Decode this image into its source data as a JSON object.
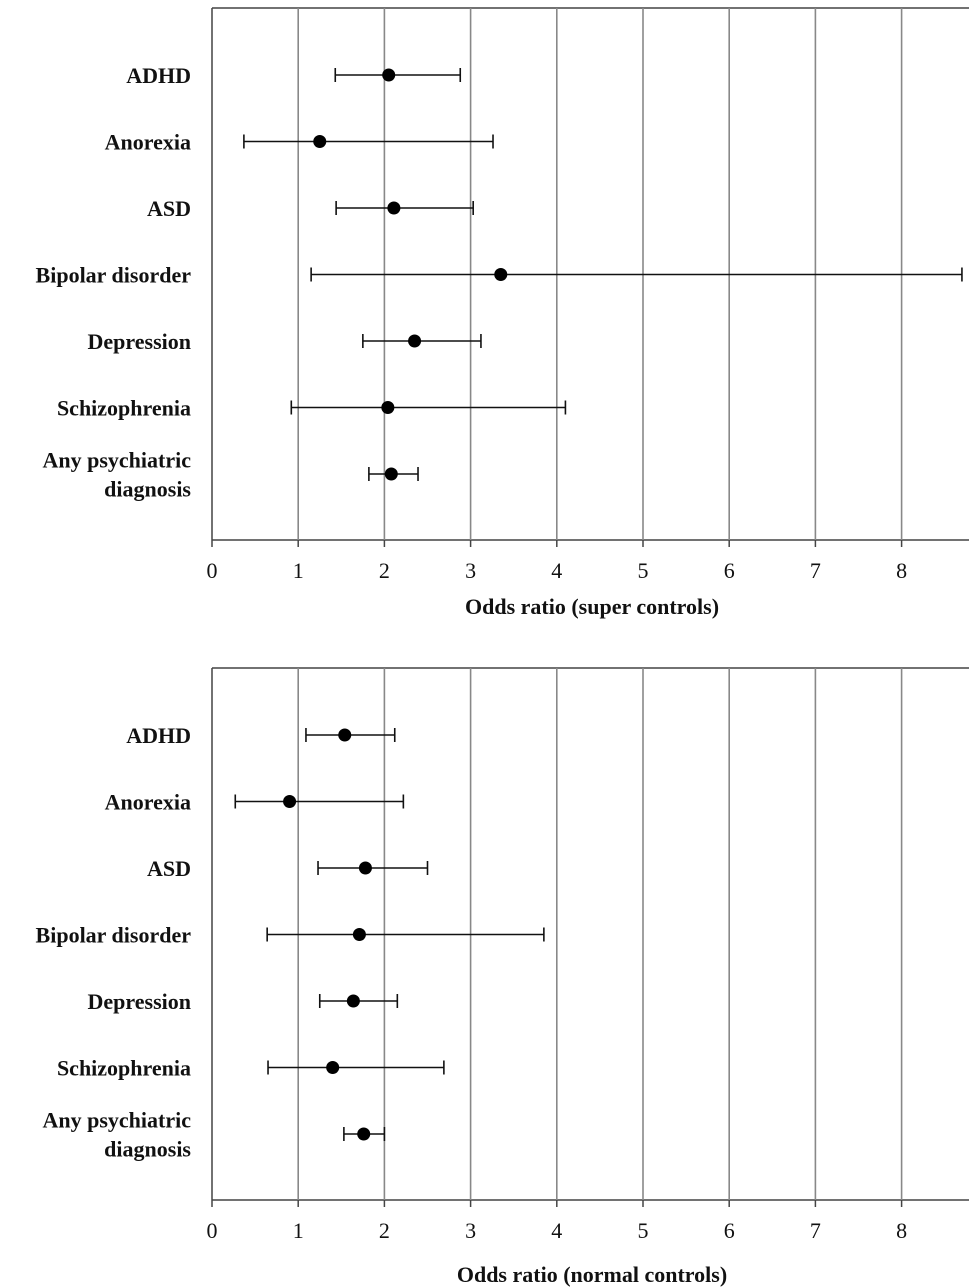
{
  "chart_data": [
    {
      "type": "scatter",
      "title": "",
      "xlabel": "Odds ratio (super controls)",
      "ylabel": "",
      "xlim": [
        0,
        8.75
      ],
      "xticks": [
        0,
        1,
        2,
        3,
        4,
        5,
        6,
        7,
        8
      ],
      "grid": "vertical",
      "categories": [
        [
          "ADHD"
        ],
        [
          "Anorexia"
        ],
        [
          "ASD"
        ],
        [
          "Bipolar disorder"
        ],
        [
          "Depression"
        ],
        [
          "Schizophrenia"
        ],
        [
          "Any psychiatric",
          "diagnosis"
        ]
      ],
      "points": [
        {
          "or": 2.05,
          "lo": 1.43,
          "hi": 2.88
        },
        {
          "or": 1.25,
          "lo": 0.37,
          "hi": 3.26
        },
        {
          "or": 2.11,
          "lo": 1.44,
          "hi": 3.03
        },
        {
          "or": 3.35,
          "lo": 1.15,
          "hi": 8.7
        },
        {
          "or": 2.35,
          "lo": 1.75,
          "hi": 3.12
        },
        {
          "or": 2.04,
          "lo": 0.92,
          "hi": 4.1
        },
        {
          "or": 2.08,
          "lo": 1.82,
          "hi": 2.39
        }
      ]
    },
    {
      "type": "scatter",
      "title": "",
      "xlabel": "Odds ratio (normal controls)",
      "ylabel": "",
      "xlim": [
        0,
        8.75
      ],
      "xticks": [
        0,
        1,
        2,
        3,
        4,
        5,
        6,
        7,
        8
      ],
      "grid": "vertical",
      "categories": [
        [
          "ADHD"
        ],
        [
          "Anorexia"
        ],
        [
          "ASD"
        ],
        [
          "Bipolar disorder"
        ],
        [
          "Depression"
        ],
        [
          "Schizophrenia"
        ],
        [
          "Any psychiatric",
          "diagnosis"
        ]
      ],
      "points": [
        {
          "or": 1.54,
          "lo": 1.09,
          "hi": 2.12
        },
        {
          "or": 0.9,
          "lo": 0.27,
          "hi": 2.22
        },
        {
          "or": 1.78,
          "lo": 1.23,
          "hi": 2.5
        },
        {
          "or": 1.71,
          "lo": 0.64,
          "hi": 3.85
        },
        {
          "or": 1.64,
          "lo": 1.25,
          "hi": 2.15
        },
        {
          "or": 1.4,
          "lo": 0.65,
          "hi": 2.69
        },
        {
          "or": 1.76,
          "lo": 1.53,
          "hi": 2.0
        }
      ]
    }
  ]
}
